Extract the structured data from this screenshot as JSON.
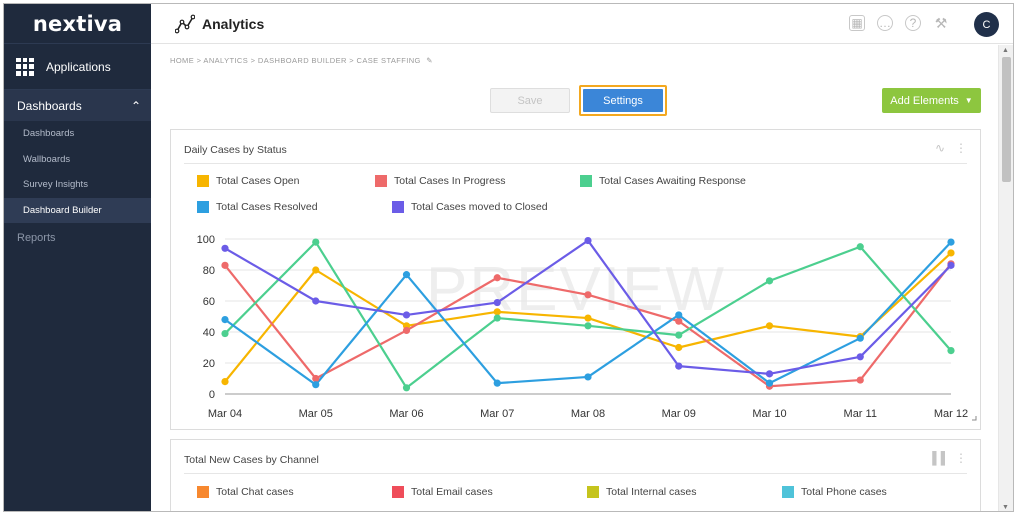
{
  "sidebar": {
    "logo": "nextiva",
    "applications_label": "Applications",
    "dashboards_label": "Dashboards",
    "items": [
      {
        "label": "Dashboards",
        "active": false
      },
      {
        "label": "Wallboards",
        "active": false
      },
      {
        "label": "Survey Insights",
        "active": false
      },
      {
        "label": "Dashboard Builder",
        "active": true
      }
    ],
    "reports_label": "Reports"
  },
  "header": {
    "title": "Analytics",
    "avatar_initial": "C"
  },
  "breadcrumb": "HOME > ANALYTICS > DASHBOARD BUILDER > CASE STAFFING",
  "toolbar": {
    "save_label": "Save",
    "settings_label": "Settings",
    "add_elements_label": "Add Elements"
  },
  "card1": {
    "title": "Daily Cases by Status",
    "watermark": "PREVIEW"
  },
  "card2": {
    "title": "Total New Cases by Channel",
    "legend": [
      {
        "name": "Total Chat cases",
        "color": "#f7882f"
      },
      {
        "name": "Total Email cases",
        "color": "#ef4d5a"
      },
      {
        "name": "Total Internal cases",
        "color": "#c5c41d"
      },
      {
        "name": "Total Phone cases",
        "color": "#4fc3d9"
      }
    ]
  },
  "chart_data": {
    "type": "line",
    "title": "Daily Cases by Status",
    "categories": [
      "Mar 04",
      "Mar 05",
      "Mar 06",
      "Mar 07",
      "Mar 08",
      "Mar 09",
      "Mar 10",
      "Mar 11",
      "Mar 12"
    ],
    "ylim": [
      0,
      100
    ],
    "yticks": [
      0,
      20,
      40,
      60,
      80,
      100
    ],
    "legend_position": "top-left",
    "grid": true,
    "series": [
      {
        "name": "Total Cases Open",
        "color": "#f7b500",
        "values": [
          8,
          80,
          44,
          53,
          49,
          30,
          44,
          37,
          91
        ]
      },
      {
        "name": "Total Cases In Progress",
        "color": "#ee6a6a",
        "values": [
          83,
          10,
          41,
          75,
          64,
          47,
          5,
          9,
          84
        ]
      },
      {
        "name": "Total Cases Awaiting Response",
        "color": "#4ccf8f",
        "values": [
          39,
          98,
          4,
          49,
          44,
          38,
          73,
          95,
          28
        ]
      },
      {
        "name": "Total Cases Resolved",
        "color": "#2d9fe0",
        "values": [
          48,
          6,
          77,
          7,
          11,
          51,
          7,
          36,
          98
        ]
      },
      {
        "name": "Total Cases moved to Closed",
        "color": "#6b5ce7",
        "values": [
          94,
          60,
          51,
          59,
          99,
          18,
          13,
          24,
          83
        ]
      }
    ]
  }
}
